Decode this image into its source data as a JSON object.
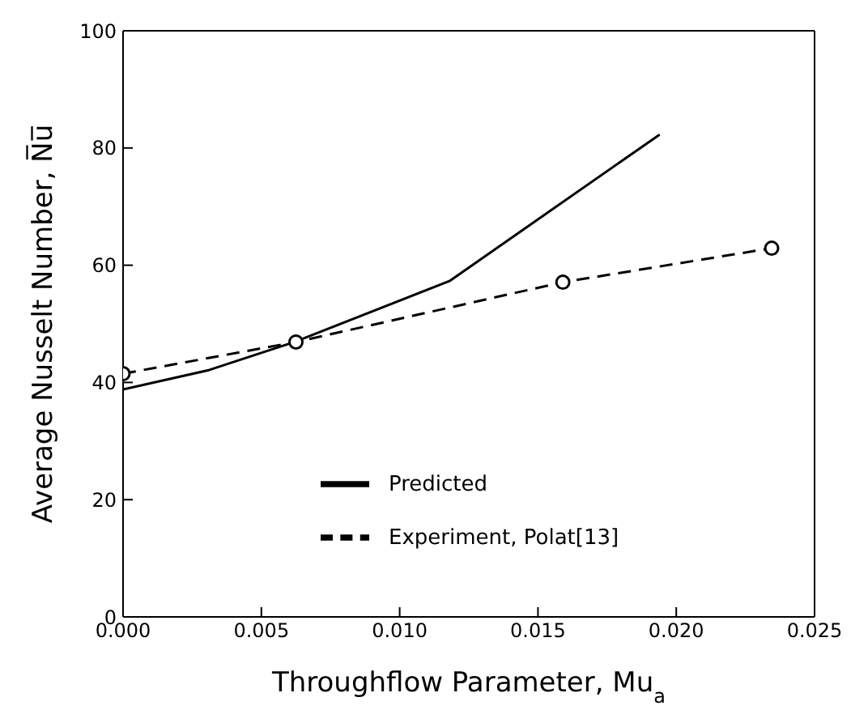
{
  "chart_data": {
    "type": "line",
    "xlabel": "Throughflow Parameter, Mu$_{a}$",
    "ylabel": "Average Nusselt Number, N̅u̅",
    "xlim": [
      0,
      0.025
    ],
    "xticks": [
      {
        "value": 0,
        "label": "0.000"
      },
      {
        "value": 0.005,
        "label": "0.005"
      },
      {
        "value": 0.01,
        "label": "0.010"
      },
      {
        "value": 0.015,
        "label": "0.015"
      },
      {
        "value": 0.02,
        "label": "0.020"
      },
      {
        "value": 0.025,
        "label": "0.025"
      }
    ],
    "ylim": [
      0,
      100
    ],
    "yticks": [
      0,
      20,
      40,
      60,
      80,
      100
    ],
    "grid": false,
    "legend": "bottom right",
    "series": [
      {
        "name": "Predicted",
        "color": "#000000",
        "line_style": "solid",
        "marker": "none",
        "x": [
          0,
          0.0031,
          0.0062,
          0.0118,
          0.0194
        ],
        "values": [
          38.8,
          42.1,
          46.9,
          57.3,
          82.3
        ]
      },
      {
        "name": "Experiment, Polat[13]",
        "color": "#000000",
        "line_style": "dashed",
        "marker": "circle",
        "x": [
          0,
          0.00625,
          0.0159,
          0.02345
        ],
        "values": [
          41.5,
          46.9,
          57.1,
          62.9
        ]
      }
    ]
  }
}
